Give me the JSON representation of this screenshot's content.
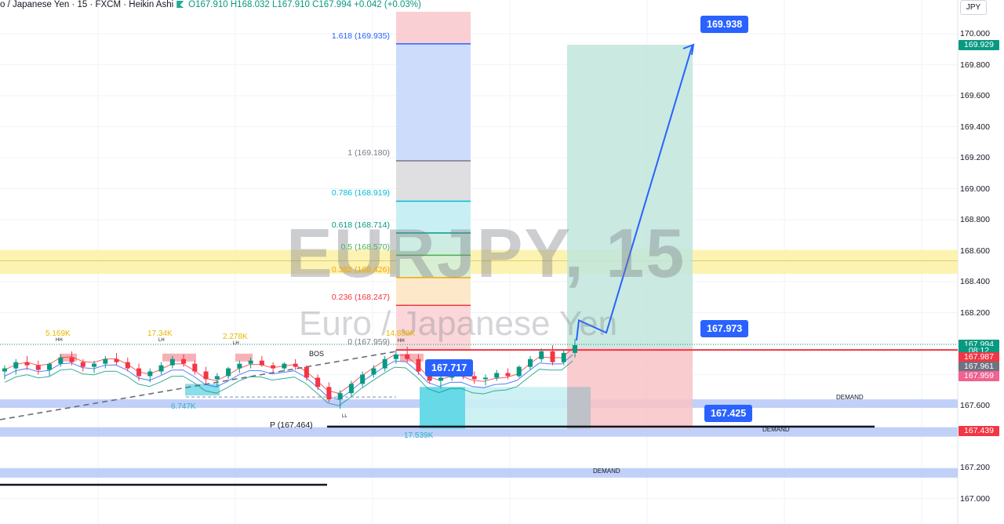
{
  "header": {
    "symbol_line": "o / Japanese Yen · 15 · FXCM · Heikin Ashi",
    "ohlc": "O167.910 H168.032 L167.910 C167.994 +0.042 (+0.03%)"
  },
  "currency_button": "JPY",
  "watermark": {
    "symbol": "EURJPY, 15",
    "name": "Euro / Japanese Yen"
  },
  "colors": {
    "up": "#089981",
    "down": "#f23645",
    "accent": "#2962ff",
    "demand_zone": "#b2c4f7",
    "supply_band": "#fbf1a6"
  },
  "price_axis": {
    "ticks": [
      "170.000",
      "169.800",
      "169.600",
      "169.400",
      "169.200",
      "169.000",
      "168.800",
      "168.600",
      "168.400",
      "168.200",
      "167.600",
      "167.200",
      "167.000"
    ],
    "tags": [
      {
        "text": "169.929",
        "color": "#089981",
        "value": 169.929
      },
      {
        "text": "167.994",
        "color": "#089981",
        "value": 167.994
      },
      {
        "text": "08:12",
        "color": "#089981",
        "value": 167.955
      },
      {
        "text": "167.987",
        "color": "#f23645",
        "value": 167.912
      },
      {
        "text": "167.961",
        "color": "#6f7280",
        "value": 167.852
      },
      {
        "text": "167.959",
        "color": "#f06292",
        "value": 167.793
      },
      {
        "text": "167.439",
        "color": "#f23645",
        "value": 167.439
      }
    ]
  },
  "fibonacci": [
    {
      "label": "1.618 (169.935)",
      "value": 169.935,
      "color": "#2962ff"
    },
    {
      "label": "1 (169.180)",
      "value": 169.18,
      "color": "#787b86"
    },
    {
      "label": "0.786 (168.919)",
      "value": 168.919,
      "color": "#00bcd4"
    },
    {
      "label": "0.618 (168.714)",
      "value": 168.714,
      "color": "#089981"
    },
    {
      "label": "0.5 (168.570)",
      "value": 168.57,
      "color": "#4caf50"
    },
    {
      "label": "0.382 (168.426)",
      "value": 168.426,
      "color": "#f7a600"
    },
    {
      "label": "0.236 (168.247)",
      "value": 168.247,
      "color": "#f23645"
    },
    {
      "label": "0 (167.959)",
      "value": 167.959,
      "color": "#787b86"
    }
  ],
  "callouts": [
    {
      "text": "169.938",
      "value": 169.938
    },
    {
      "text": "167.973",
      "value": 167.973
    },
    {
      "text": "167.717",
      "value": 167.717
    },
    {
      "text": "167.425",
      "value": 167.425
    }
  ],
  "annotations": {
    "pivot": "P (167.464)",
    "bos": "BOS",
    "demand": "DEMAND",
    "volumes": [
      "5.169K",
      "17.34K",
      "2.278K",
      "14.889K",
      "6.747K",
      "17.539K"
    ],
    "markers": [
      "HH",
      "LH",
      "LH",
      "HH",
      "LL"
    ]
  },
  "chart_data": {
    "type": "candlestick",
    "interval": "15",
    "symbol": "EURJPY",
    "ylim": [
      166.92,
      170.12
    ],
    "candles": [
      [
        167.82,
        167.86,
        167.77,
        167.84
      ],
      [
        167.84,
        167.9,
        167.8,
        167.88
      ],
      [
        167.88,
        167.92,
        167.83,
        167.86
      ],
      [
        167.86,
        167.89,
        167.8,
        167.83
      ],
      [
        167.83,
        167.88,
        167.79,
        167.87
      ],
      [
        167.87,
        167.93,
        167.85,
        167.91
      ],
      [
        167.91,
        167.95,
        167.86,
        167.88
      ],
      [
        167.88,
        167.9,
        167.82,
        167.85
      ],
      [
        167.85,
        167.89,
        167.81,
        167.87
      ],
      [
        167.87,
        167.92,
        167.84,
        167.9
      ],
      [
        167.9,
        167.94,
        167.86,
        167.88
      ],
      [
        167.88,
        167.91,
        167.82,
        167.84
      ],
      [
        167.84,
        167.87,
        167.76,
        167.79
      ],
      [
        167.79,
        167.84,
        167.75,
        167.82
      ],
      [
        167.82,
        167.88,
        167.8,
        167.86
      ],
      [
        167.86,
        167.92,
        167.84,
        167.9
      ],
      [
        167.9,
        167.93,
        167.85,
        167.87
      ],
      [
        167.87,
        167.89,
        167.8,
        167.82
      ],
      [
        167.82,
        167.85,
        167.74,
        167.77
      ],
      [
        167.77,
        167.81,
        167.72,
        167.79
      ],
      [
        167.79,
        167.85,
        167.77,
        167.84
      ],
      [
        167.84,
        167.89,
        167.81,
        167.87
      ],
      [
        167.87,
        167.91,
        167.84,
        167.89
      ],
      [
        167.89,
        167.92,
        167.85,
        167.86
      ],
      [
        167.86,
        167.88,
        167.81,
        167.84
      ],
      [
        167.84,
        167.88,
        167.82,
        167.87
      ],
      [
        167.87,
        167.9,
        167.83,
        167.85
      ],
      [
        167.85,
        167.86,
        167.76,
        167.78
      ],
      [
        167.78,
        167.8,
        167.7,
        167.72
      ],
      [
        167.72,
        167.75,
        167.62,
        167.64
      ],
      [
        167.64,
        167.7,
        167.58,
        167.68
      ],
      [
        167.68,
        167.76,
        167.66,
        167.74
      ],
      [
        167.74,
        167.82,
        167.72,
        167.8
      ],
      [
        167.8,
        167.86,
        167.78,
        167.84
      ],
      [
        167.84,
        167.92,
        167.82,
        167.9
      ],
      [
        167.9,
        167.96,
        167.87,
        167.93
      ],
      [
        167.93,
        167.98,
        167.88,
        167.9
      ],
      [
        167.9,
        167.93,
        167.8,
        167.82
      ],
      [
        167.82,
        167.85,
        167.74,
        167.76
      ],
      [
        167.76,
        167.8,
        167.71,
        167.78
      ],
      [
        167.78,
        167.84,
        167.76,
        167.82
      ],
      [
        167.82,
        167.86,
        167.77,
        167.79
      ],
      [
        167.79,
        167.82,
        167.74,
        167.77
      ],
      [
        167.77,
        167.8,
        167.73,
        167.78
      ],
      [
        167.78,
        167.83,
        167.76,
        167.81
      ],
      [
        167.81,
        167.84,
        167.77,
        167.79
      ],
      [
        167.79,
        167.86,
        167.78,
        167.85
      ],
      [
        167.85,
        167.92,
        167.83,
        167.9
      ],
      [
        167.9,
        167.97,
        167.88,
        167.95
      ],
      [
        167.95,
        167.99,
        167.86,
        167.88
      ],
      [
        167.88,
        167.96,
        167.86,
        167.94
      ],
      [
        167.94,
        168.03,
        167.91,
        167.99
      ]
    ]
  }
}
